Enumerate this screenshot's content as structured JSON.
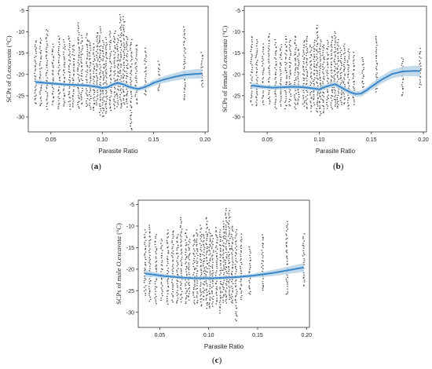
{
  "chart_data": [
    {
      "id": "a",
      "type": "scatter",
      "caption": "a",
      "xlabel": "Parasite Ratio",
      "ylabel": {
        "prefix": "SCPs of ",
        "species": "O.excavata",
        "suffix": " (°C)"
      },
      "xticks": [
        "0.05",
        "0.10",
        "0.15",
        "0.20"
      ],
      "xtick_values": [
        0.05,
        0.1,
        0.15,
        0.2
      ],
      "yticks": [
        "-5",
        "-10",
        "-15",
        "-20",
        "-25",
        "-30"
      ],
      "ytick_values": [
        -5,
        -10,
        -15,
        -20,
        -25,
        -30
      ],
      "xlim": [
        0.028,
        0.203
      ],
      "ylim": [
        -33.5,
        -4
      ],
      "point_x": [
        0.035,
        0.04,
        0.046,
        0.052,
        0.058,
        0.063,
        0.068,
        0.072,
        0.077,
        0.08,
        0.085,
        0.088,
        0.092,
        0.095,
        0.098,
        0.101,
        0.104,
        0.108,
        0.112,
        0.115,
        0.118,
        0.121,
        0.124,
        0.128,
        0.133,
        0.142,
        0.155,
        0.18,
        0.197
      ],
      "point_ymin": [
        -27,
        -27.5,
        -28,
        -27,
        -28,
        -27.5,
        -28,
        -27.5,
        -28,
        -27,
        -27.5,
        -28,
        -28.5,
        -27,
        -29.5,
        -30,
        -29,
        -28.5,
        -28,
        -27.5,
        -28,
        -27,
        -27.5,
        -33,
        -27,
        -25,
        -24,
        -26,
        -23
      ],
      "point_ymax": [
        -12,
        -11.5,
        -9.5,
        -13,
        -11,
        -12,
        -11,
        -13,
        -8,
        -11,
        -10.5,
        -12,
        -13,
        -10,
        -9,
        -12,
        -11.5,
        -10,
        -10,
        -11,
        -6,
        -6.5,
        -11,
        -12,
        -13,
        -14,
        -17,
        -9,
        -15
      ],
      "fit": {
        "x": [
          0.035,
          0.045,
          0.055,
          0.065,
          0.075,
          0.085,
          0.095,
          0.1,
          0.105,
          0.11,
          0.115,
          0.12,
          0.125,
          0.13,
          0.135,
          0.14,
          0.145,
          0.15,
          0.16,
          0.17,
          0.18,
          0.19,
          0.197
        ],
        "y": [
          -21.8,
          -22.0,
          -22.2,
          -22.4,
          -22.5,
          -22.6,
          -22.9,
          -23.2,
          -23.0,
          -22.4,
          -22.0,
          -22.3,
          -22.8,
          -23.2,
          -23.4,
          -23.1,
          -22.6,
          -22.0,
          -21.2,
          -20.6,
          -20.1,
          -19.9,
          -19.8
        ],
        "band": [
          0.6,
          0.4,
          0.4,
          0.4,
          0.4,
          0.4,
          0.5,
          0.5,
          0.5,
          0.5,
          0.5,
          0.5,
          0.5,
          0.5,
          0.5,
          0.6,
          0.6,
          0.7,
          0.8,
          0.9,
          1.0,
          1.1,
          1.2
        ]
      }
    },
    {
      "id": "b",
      "type": "scatter",
      "caption": "b",
      "xlabel": "Parasite Ratio",
      "ylabel": {
        "prefix": "SCPs of female ",
        "species": "O.excavata",
        "suffix": " (°C)"
      },
      "xticks": [
        "0.05",
        "0.10",
        "0.15",
        "0.20"
      ],
      "xtick_values": [
        0.05,
        0.1,
        0.15,
        0.2
      ],
      "yticks": [
        "-5",
        "-10",
        "-15",
        "-20",
        "-25",
        "-30"
      ],
      "ytick_values": [
        -5,
        -10,
        -15,
        -20,
        -25,
        -30
      ],
      "xlim": [
        0.028,
        0.203
      ],
      "ylim": [
        -33.5,
        -4
      ],
      "point_x": [
        0.035,
        0.04,
        0.046,
        0.052,
        0.058,
        0.063,
        0.068,
        0.072,
        0.077,
        0.08,
        0.085,
        0.088,
        0.092,
        0.095,
        0.098,
        0.101,
        0.104,
        0.108,
        0.112,
        0.115,
        0.118,
        0.121,
        0.124,
        0.128,
        0.133,
        0.142,
        0.155,
        0.18,
        0.197
      ],
      "point_ymin": [
        -27,
        -27.5,
        -27,
        -27,
        -28,
        -27.5,
        -28,
        -27.5,
        -28,
        -27,
        -27.5,
        -28,
        -28.5,
        -27,
        -29,
        -29.5,
        -29,
        -28,
        -28,
        -27.5,
        -28,
        -27,
        -27,
        -28,
        -27,
        -25,
        -24,
        -25,
        -23
      ],
      "point_ymax": [
        -11,
        -12,
        -13,
        -10.5,
        -12,
        -13,
        -11,
        -12,
        -11,
        -14,
        -12,
        -11,
        -13,
        -12,
        -8.5,
        -12,
        -13,
        -12,
        -11,
        -10,
        -12,
        -14,
        -13,
        -14,
        -15,
        -16,
        -11,
        -16,
        -14
      ],
      "fit": {
        "x": [
          0.035,
          0.045,
          0.055,
          0.065,
          0.075,
          0.085,
          0.095,
          0.1,
          0.105,
          0.11,
          0.115,
          0.12,
          0.125,
          0.13,
          0.135,
          0.14,
          0.145,
          0.15,
          0.16,
          0.17,
          0.18,
          0.19,
          0.197
        ],
        "y": [
          -22.6,
          -22.9,
          -23.1,
          -23.0,
          -22.9,
          -23.0,
          -23.3,
          -23.5,
          -23.0,
          -22.6,
          -22.3,
          -22.9,
          -23.6,
          -24.2,
          -24.6,
          -24.5,
          -23.8,
          -22.9,
          -21.2,
          -19.9,
          -19.3,
          -19.2,
          -19.2
        ],
        "band": [
          0.7,
          0.5,
          0.5,
          0.5,
          0.5,
          0.5,
          0.5,
          0.6,
          0.6,
          0.6,
          0.6,
          0.6,
          0.6,
          0.6,
          0.6,
          0.7,
          0.7,
          0.8,
          0.9,
          1.0,
          1.1,
          1.2,
          1.3
        ]
      }
    },
    {
      "id": "c",
      "type": "scatter",
      "caption": "c",
      "xlabel": "Parasite Ratio",
      "ylabel": {
        "prefix": "SCPs of male ",
        "species": "O.excavata",
        "suffix": " (°C)"
      },
      "xticks": [
        "0.05",
        "0.10",
        "0.15",
        "0.20"
      ],
      "xtick_values": [
        0.05,
        0.1,
        0.15,
        0.2
      ],
      "yticks": [
        "-5",
        "-10",
        "-15",
        "-20",
        "-25",
        "-30"
      ],
      "ytick_values": [
        -5,
        -10,
        -15,
        -20,
        -25,
        -30
      ],
      "xlim": [
        0.028,
        0.203
      ],
      "ylim": [
        -33.5,
        -4
      ],
      "point_x": [
        0.035,
        0.04,
        0.046,
        0.052,
        0.058,
        0.063,
        0.068,
        0.072,
        0.077,
        0.08,
        0.085,
        0.088,
        0.092,
        0.095,
        0.098,
        0.101,
        0.104,
        0.108,
        0.112,
        0.115,
        0.118,
        0.121,
        0.124,
        0.128,
        0.133,
        0.142,
        0.155,
        0.18,
        0.197
      ],
      "point_ymin": [
        -26,
        -27.5,
        -28,
        -27,
        -28,
        -27.5,
        -28,
        -27.5,
        -28,
        -27,
        -28,
        -28,
        -28.5,
        -27,
        -29,
        -29,
        -28.5,
        -28,
        -30,
        -27.5,
        -28,
        -27,
        -28,
        -32,
        -27,
        -26,
        -25,
        -26,
        -24
      ],
      "point_ymax": [
        -11,
        -10,
        -12,
        -13,
        -11,
        -11,
        -12,
        -8,
        -11,
        -13,
        -12,
        -11,
        -10,
        -12,
        -8,
        -11,
        -12,
        -10.5,
        -11,
        -9,
        -6,
        -6.5,
        -10,
        -11,
        -12,
        -15,
        -12,
        -9,
        -12
      ],
      "fit": {
        "x": [
          0.035,
          0.045,
          0.055,
          0.065,
          0.075,
          0.085,
          0.095,
          0.105,
          0.115,
          0.125,
          0.135,
          0.145,
          0.155,
          0.165,
          0.175,
          0.185,
          0.197
        ],
        "y": [
          -21.0,
          -21.3,
          -21.6,
          -21.8,
          -22.0,
          -22.1,
          -22.1,
          -22.1,
          -22.0,
          -21.9,
          -21.7,
          -21.5,
          -21.2,
          -20.9,
          -20.5,
          -20.1,
          -19.6
        ],
        "band": [
          0.8,
          0.6,
          0.5,
          0.4,
          0.4,
          0.4,
          0.4,
          0.4,
          0.4,
          0.4,
          0.4,
          0.5,
          0.6,
          0.7,
          0.8,
          0.9,
          1.0
        ]
      }
    }
  ],
  "colors": {
    "points": "#4a4a4a",
    "fit_line": "#3a86c8",
    "band": "#b9d3e8"
  }
}
